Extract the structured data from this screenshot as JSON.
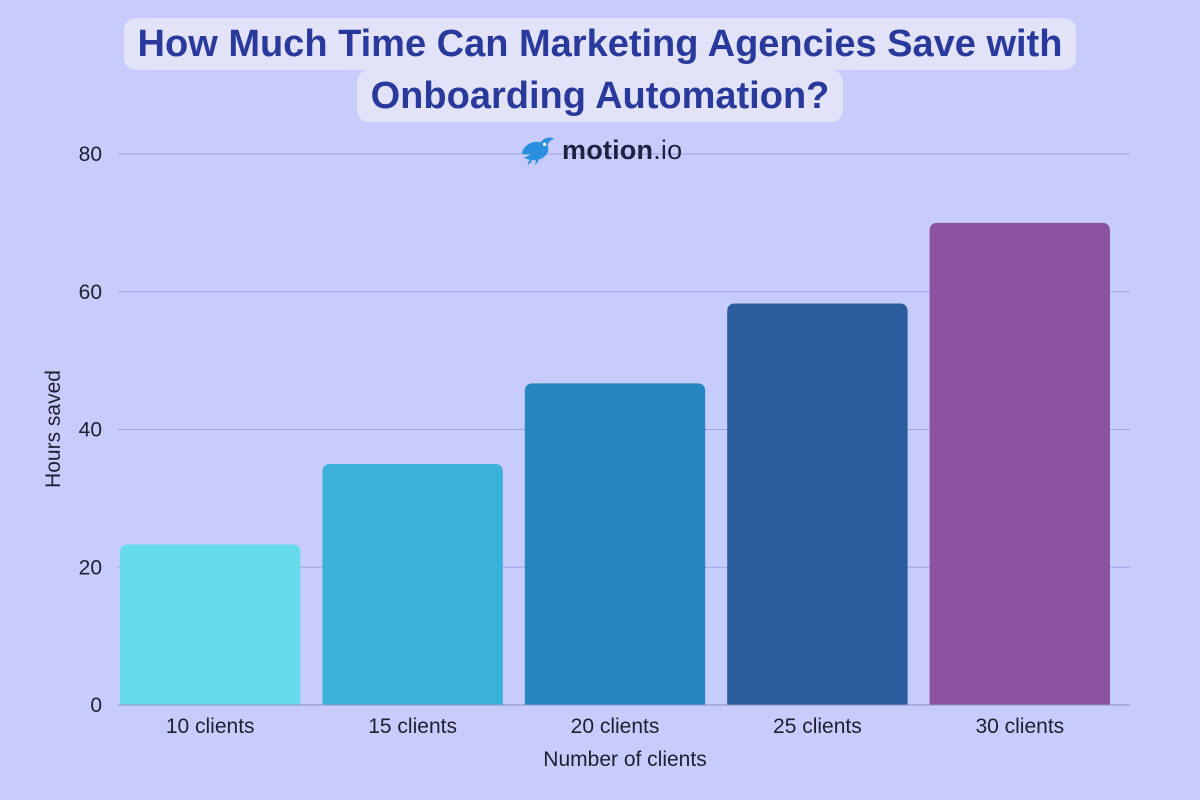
{
  "title_line1": "How Much Time Can Marketing Agencies Save with",
  "title_line2": "Onboarding Automation?",
  "brand": {
    "name": "motion",
    "tld": ".io",
    "icon": "bird-logo-icon"
  },
  "colors": {
    "background": "#c8ccfd",
    "title_text": "#2a3a9c",
    "gridline": "#9da3e0"
  },
  "chart_data": {
    "type": "bar",
    "title": "How Much Time Can Marketing Agencies Save with Onboarding Automation?",
    "categories": [
      "10 clients",
      "15 clients",
      "20 clients",
      "25 clients",
      "30 clients"
    ],
    "values": [
      23.3,
      35,
      46.7,
      58.3,
      70
    ],
    "bar_colors": [
      "#66dbeb",
      "#3bb0db",
      "#2586c0",
      "#2b5c9e",
      "#8b52a0"
    ],
    "xlabel": "Number of clients",
    "ylabel": "Hours saved",
    "yticks": [
      0,
      20,
      40,
      60,
      80
    ],
    "ylim": [
      0,
      80
    ],
    "grid": true
  }
}
